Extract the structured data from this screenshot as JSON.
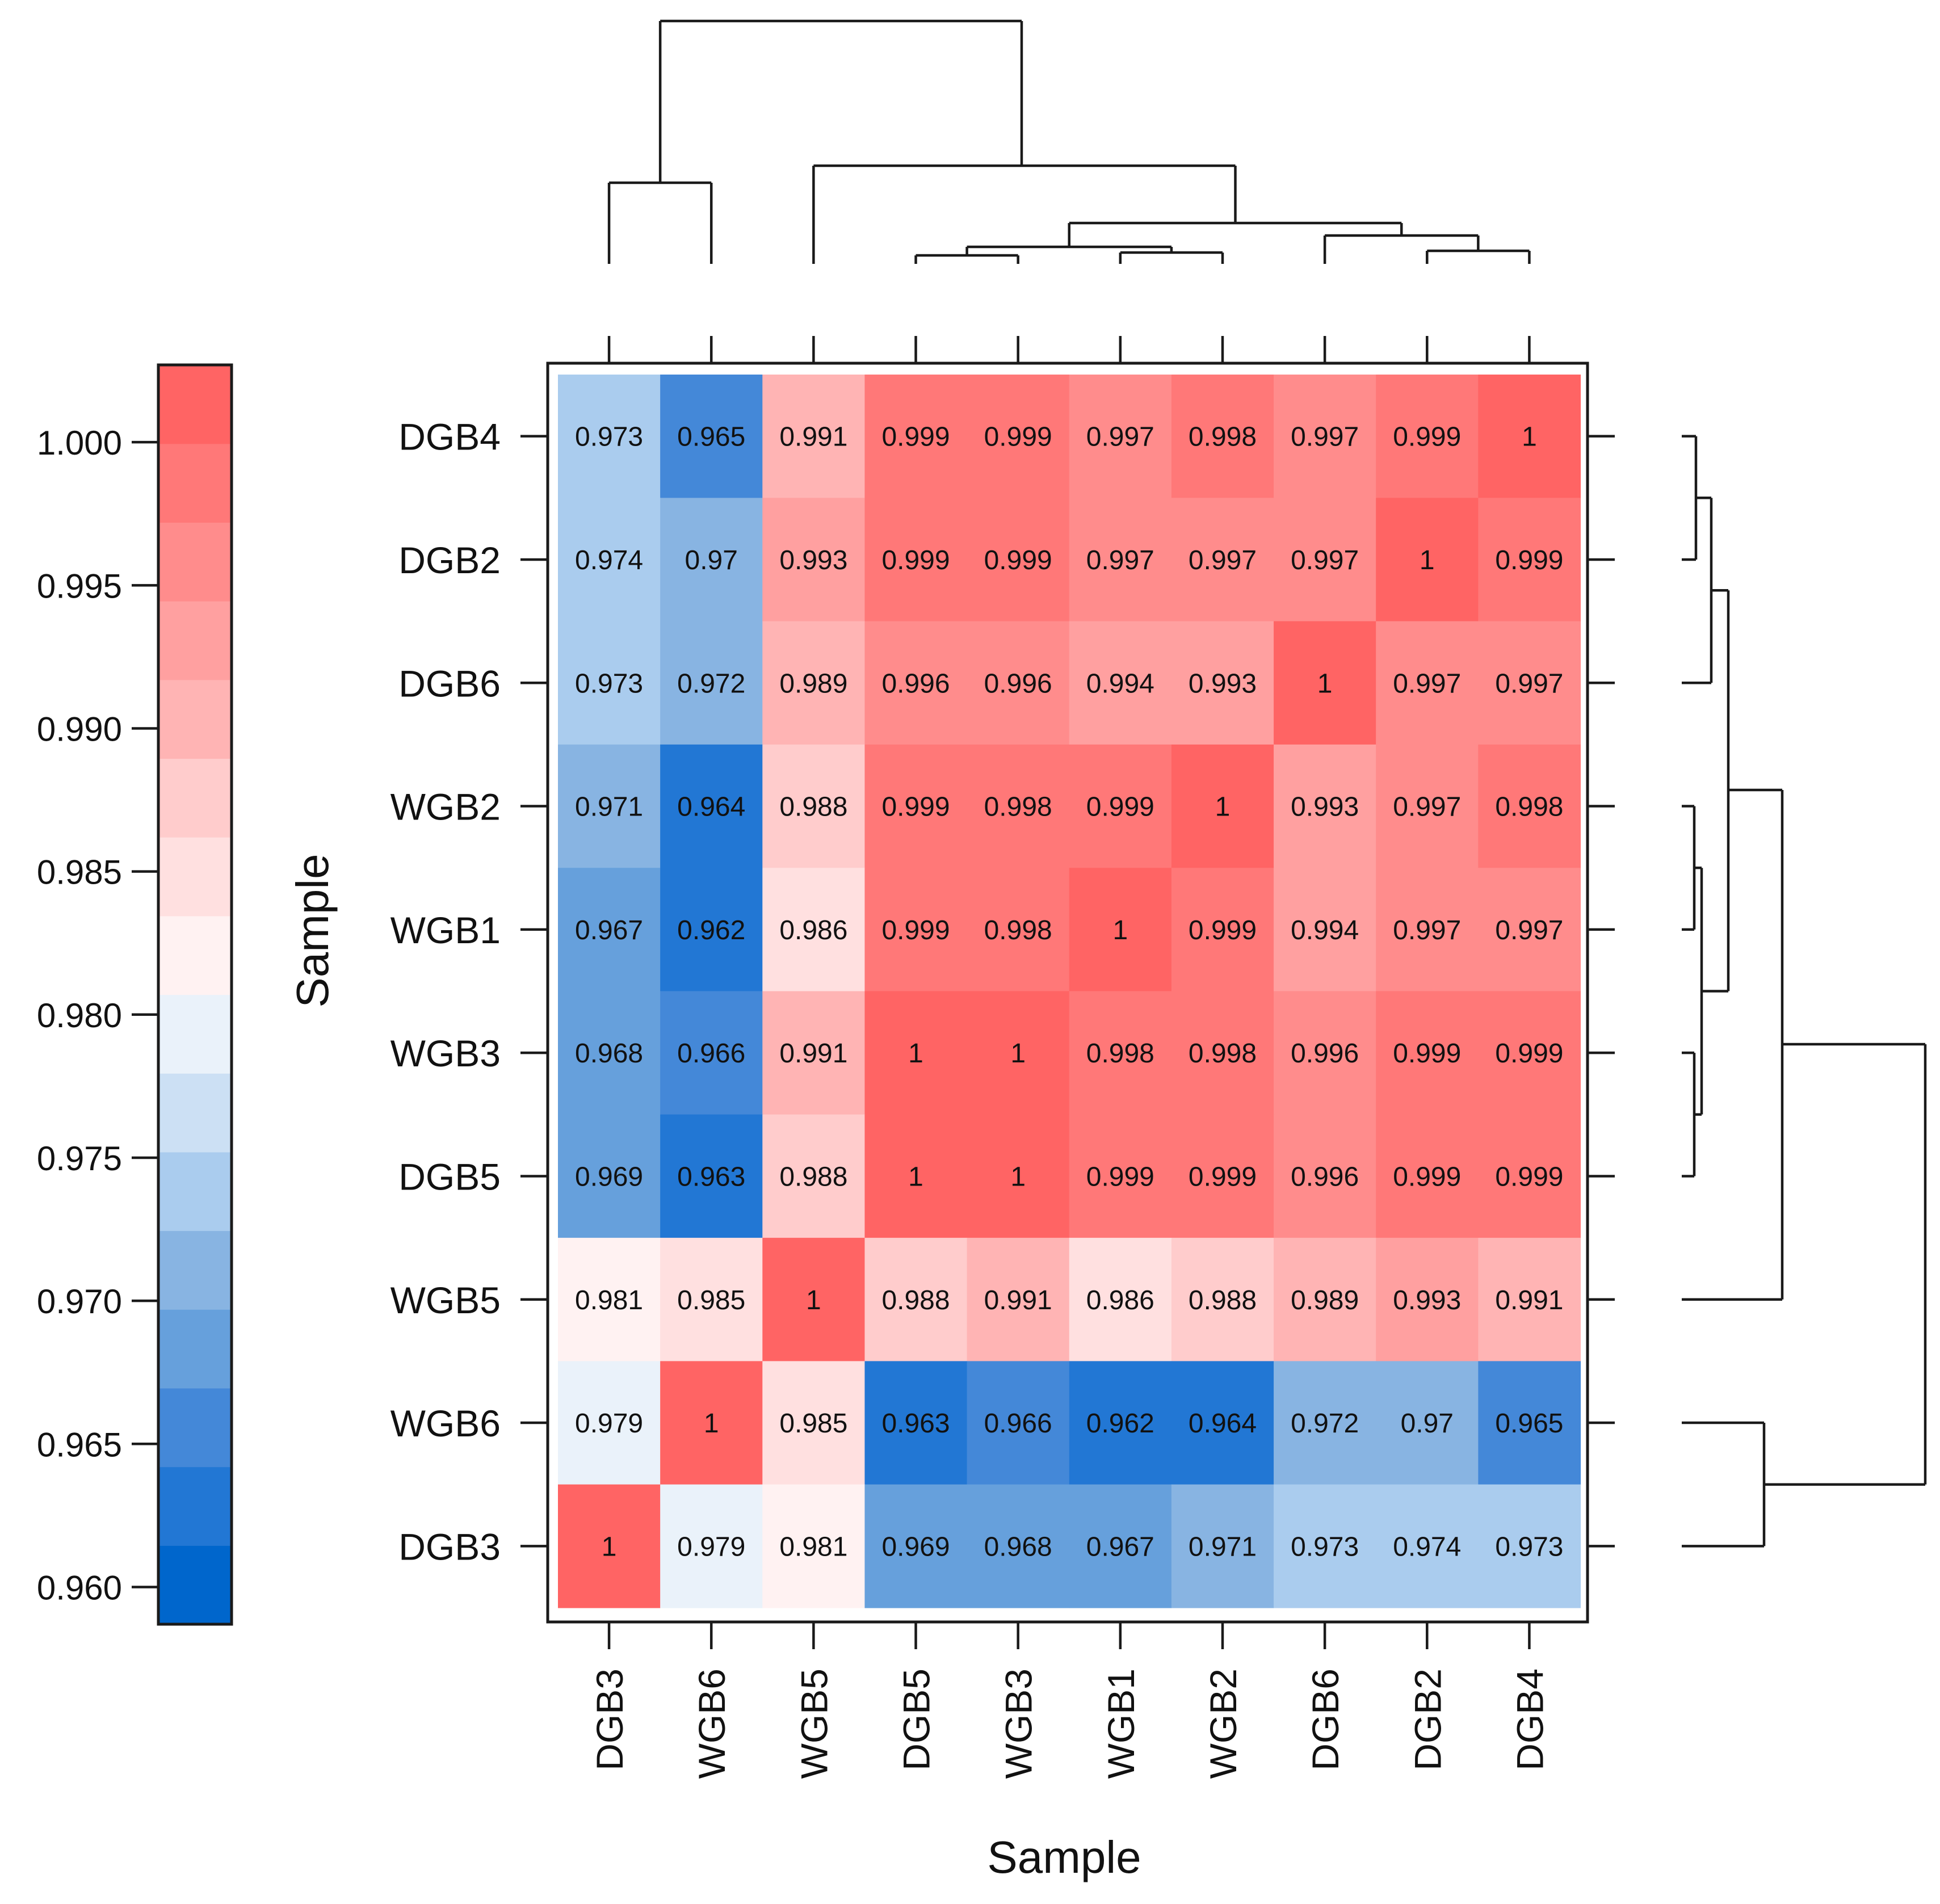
{
  "chart_data": {
    "type": "heatmap",
    "title": "",
    "xlabel": "Sample",
    "ylabel": "Sample",
    "columns": [
      "DGB3",
      "WGB6",
      "WGB5",
      "DGB5",
      "WGB3",
      "WGB1",
      "WGB2",
      "DGB6",
      "DGB2",
      "DGB4"
    ],
    "rows": [
      "DGB4",
      "DGB2",
      "DGB6",
      "WGB2",
      "WGB1",
      "WGB3",
      "DGB5",
      "WGB5",
      "WGB6",
      "DGB3"
    ],
    "cell_labels": [
      [
        "0.973",
        "0.965",
        "0.991",
        "0.999",
        "0.999",
        "0.997",
        "0.998",
        "0.997",
        "0.999",
        "1"
      ],
      [
        "0.974",
        "0.97",
        "0.993",
        "0.999",
        "0.999",
        "0.997",
        "0.997",
        "0.997",
        "1",
        "0.999"
      ],
      [
        "0.973",
        "0.972",
        "0.989",
        "0.996",
        "0.996",
        "0.994",
        "0.993",
        "1",
        "0.997",
        "0.997"
      ],
      [
        "0.971",
        "0.964",
        "0.988",
        "0.999",
        "0.998",
        "0.999",
        "1",
        "0.993",
        "0.997",
        "0.998"
      ],
      [
        "0.967",
        "0.962",
        "0.986",
        "0.999",
        "0.998",
        "1",
        "0.999",
        "0.994",
        "0.997",
        "0.997"
      ],
      [
        "0.968",
        "0.966",
        "0.991",
        "1",
        "1",
        "0.998",
        "0.998",
        "0.996",
        "0.999",
        "0.999"
      ],
      [
        "0.969",
        "0.963",
        "0.988",
        "1",
        "1",
        "0.999",
        "0.999",
        "0.996",
        "0.999",
        "0.999"
      ],
      [
        "0.981",
        "0.985",
        "1",
        "0.988",
        "0.991",
        "0.986",
        "0.988",
        "0.989",
        "0.993",
        "0.991"
      ],
      [
        "0.979",
        "1",
        "0.985",
        "0.963",
        "0.966",
        "0.962",
        "0.964",
        "0.972",
        "0.97",
        "0.965"
      ],
      [
        "1",
        "0.979",
        "0.981",
        "0.969",
        "0.968",
        "0.967",
        "0.971",
        "0.973",
        "0.974",
        "0.973"
      ]
    ],
    "colorbar": {
      "range": [
        0.9587,
        1.0027
      ],
      "ticks": [
        "1.000",
        "0.995",
        "0.990",
        "0.985",
        "0.980",
        "0.975",
        "0.970",
        "0.965",
        "0.960"
      ],
      "colors": [
        "#0066cc",
        "#2277d4",
        "#4488d8",
        "#66a0dc",
        "#88b4e2",
        "#aaccee",
        "#cce0f4",
        "#eaf2fa",
        "#fff2f2",
        "#ffe0e0",
        "#ffcccc",
        "#ffb4b4",
        "#ffa0a0",
        "#ff8c8c",
        "#ff7878",
        "#ff6464"
      ]
    },
    "dendrogram_leaves_top": [
      "DGB3",
      "WGB6",
      "WGB5",
      "DGB5",
      "WGB3",
      "WGB1",
      "WGB2",
      "DGB6",
      "DGB2",
      "DGB4"
    ],
    "dendrogram_leaves_right": [
      "DGB4",
      "DGB2",
      "DGB6",
      "WGB2",
      "WGB1",
      "WGB3",
      "DGB5",
      "WGB5",
      "WGB6",
      "DGB3"
    ]
  }
}
